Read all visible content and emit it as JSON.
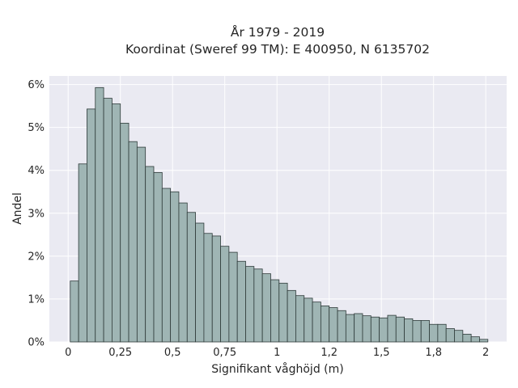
{
  "chart_data": {
    "type": "bar",
    "title": "År 1979 - 2019",
    "subtitle": "Koordinat (Sweref 99 TM): E 400950, N 6135702",
    "xlabel": "Signifikant våghöjd (m)",
    "ylabel": "Andel",
    "xlim": [
      -0.09,
      2.1
    ],
    "ylim": [
      0,
      6.2
    ],
    "xticks": [
      0,
      0.25,
      0.5,
      0.75,
      1,
      1.25,
      1.5,
      1.75,
      2
    ],
    "xtick_labels": [
      "0",
      "0,25",
      "0,5",
      "0,75",
      "1",
      "1,2",
      "1,5",
      "1,8",
      "2"
    ],
    "yticks": [
      0,
      1,
      2,
      3,
      4,
      5,
      6
    ],
    "ytick_labels": [
      "0%",
      "1%",
      "2%",
      "3%",
      "4%",
      "5%",
      "6%"
    ],
    "grid": true,
    "bin_start": 0.01,
    "bin_width": 0.04,
    "values": [
      1.42,
      4.15,
      5.43,
      5.93,
      5.68,
      5.55,
      5.1,
      4.67,
      4.54,
      4.09,
      3.95,
      3.58,
      3.5,
      3.24,
      3.02,
      2.77,
      2.53,
      2.47,
      2.23,
      2.09,
      1.88,
      1.76,
      1.7,
      1.59,
      1.45,
      1.37,
      1.2,
      1.08,
      1.02,
      0.93,
      0.84,
      0.8,
      0.73,
      0.64,
      0.66,
      0.61,
      0.58,
      0.56,
      0.62,
      0.58,
      0.54,
      0.5,
      0.5,
      0.41,
      0.41,
      0.31,
      0.27,
      0.18,
      0.12,
      0.06
    ]
  }
}
